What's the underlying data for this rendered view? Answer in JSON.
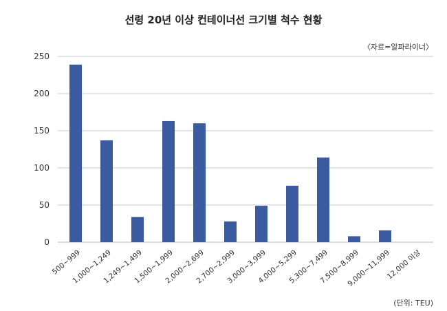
{
  "chart_data": {
    "type": "bar",
    "title": "선령 20년 이상 컨테이너선 크기별 척수 현황",
    "source": "〈자료=알파라이너〉",
    "unit_note": "(단위: TEU)",
    "categories": [
      "500~999",
      "1,000~1,249",
      "1,249~1,499",
      "1,500~1,999",
      "2,000~2,699",
      "2,700~2,999",
      "3,000~3,999",
      "4,000~5,299",
      "5,300~7,499",
      "7,500~8,999",
      "9,000~11,999",
      "12,000 이상"
    ],
    "values": [
      239,
      137,
      34,
      163,
      160,
      28,
      49,
      76,
      114,
      8,
      16,
      0
    ],
    "ylim": [
      0,
      250
    ],
    "yticks": [
      0,
      50,
      100,
      150,
      200,
      250
    ],
    "grid": true,
    "bar_color": "#3a5ba0",
    "grid_color": "#c8c8c8"
  }
}
